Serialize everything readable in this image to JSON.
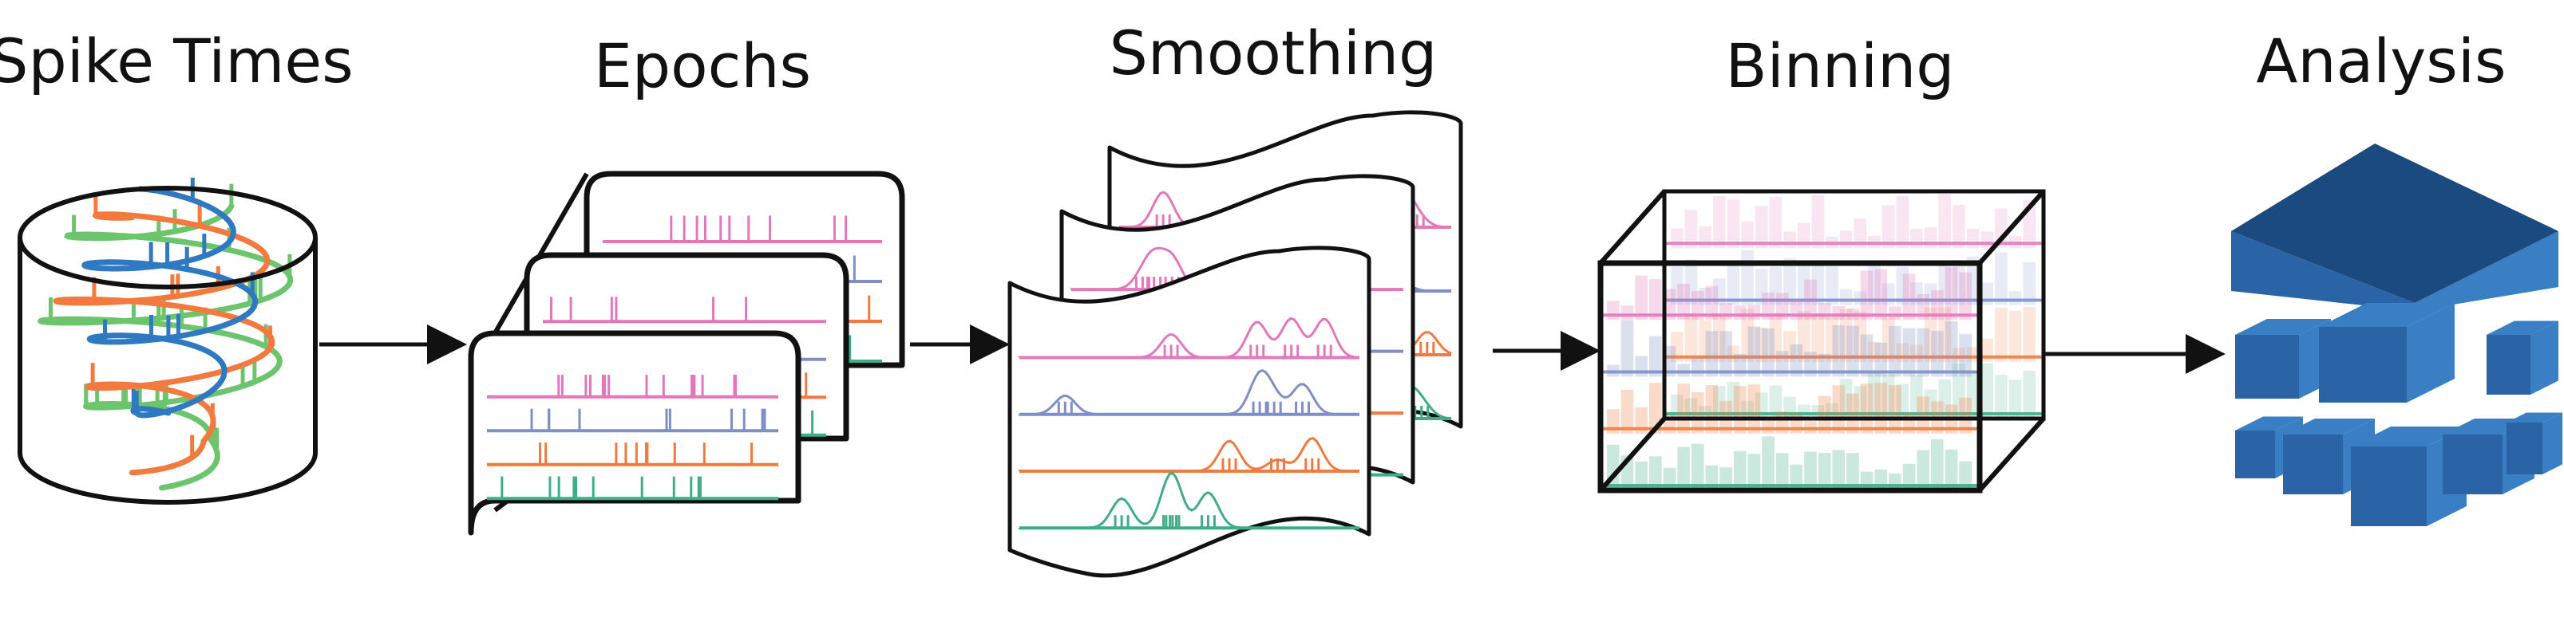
{
  "stages": [
    {
      "key": "spike_times",
      "label": "Spike Times"
    },
    {
      "key": "epochs",
      "label": "Epochs"
    },
    {
      "key": "smoothing",
      "label": "Smoothing"
    },
    {
      "key": "binning",
      "label": "Binning"
    },
    {
      "key": "analysis",
      "label": "Analysis"
    }
  ],
  "colors": {
    "pink": "#e377b9",
    "blue": "#7f8fc6",
    "orange": "#f37a3f",
    "green": "#3fae86",
    "spiral_green": "#6cc46c",
    "spiral_blue": "#2f79c2",
    "cube_light": "#3a7fc4",
    "cube_mid": "#2a64a6",
    "cube_dark": "#1b4a80",
    "outline": "#111111"
  },
  "icons": {
    "cylinder": "database-cylinder-icon",
    "pages": "epoch-pages-icon",
    "waves": "smoothed-pages-icon",
    "box": "binning-box-icon",
    "cubes": "analysis-cubes-icon"
  }
}
